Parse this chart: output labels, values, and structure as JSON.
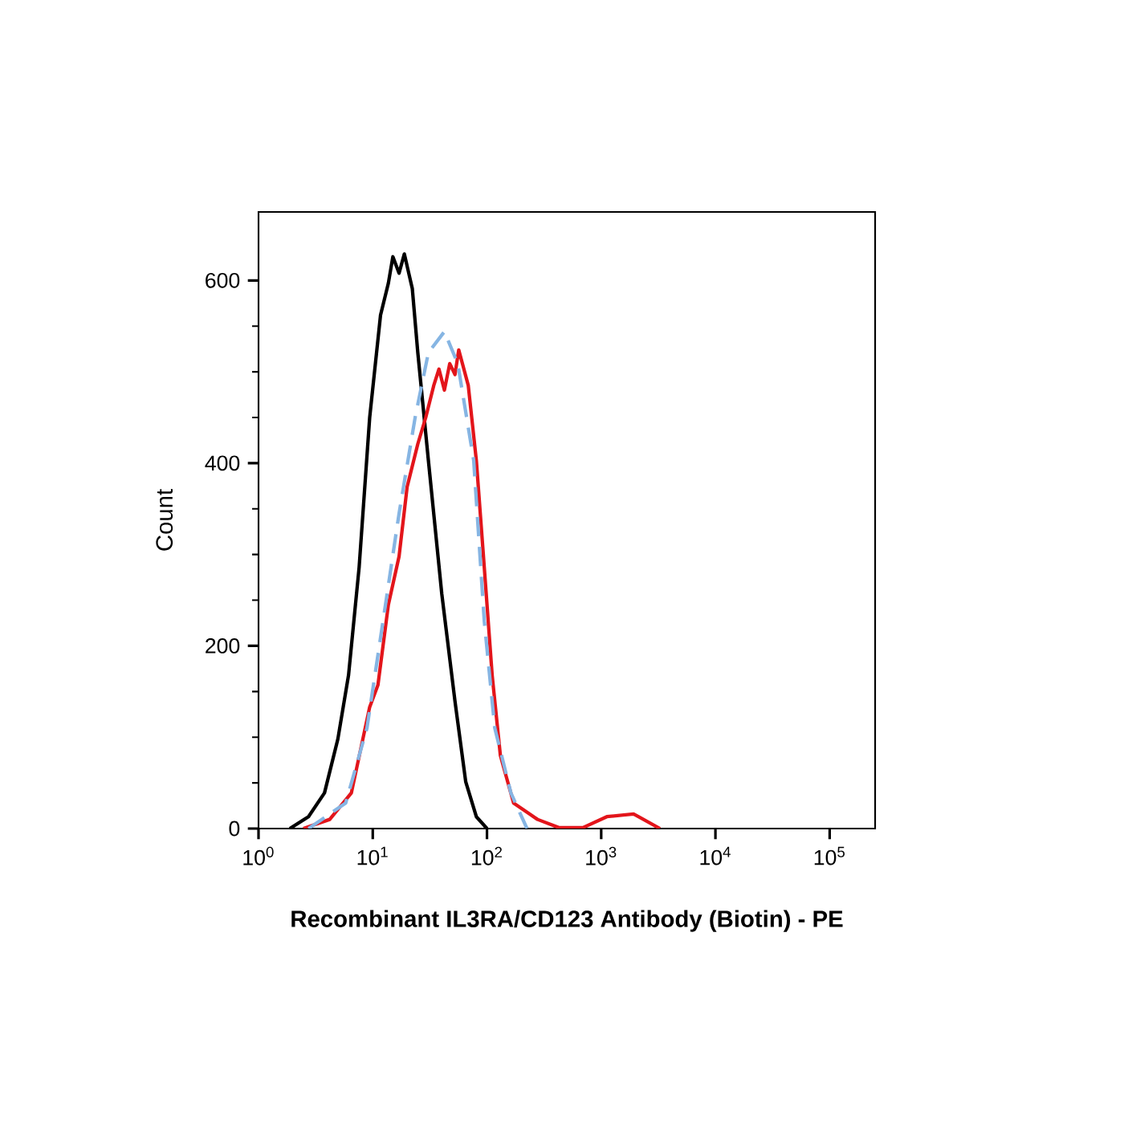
{
  "chart_data": {
    "type": "line",
    "xlabel": "Recombinant IL3RA/CD123 Antibody (Biotin) - PE",
    "ylabel": "Count",
    "log": "x",
    "xlim": [
      1,
      250000
    ],
    "ylim": [
      0,
      675
    ],
    "xticks": [
      {
        "value": 1,
        "label": "10$^{0}$"
      },
      {
        "value": 10,
        "label": "10$^{1}$"
      },
      {
        "value": 100,
        "label": "10$^{2}$"
      },
      {
        "value": 1000,
        "label": "10$^{3}$"
      },
      {
        "value": 10000,
        "label": "10$^{4}$"
      },
      {
        "value": 100000,
        "label": "10$^{5}$"
      }
    ],
    "yticks": [
      0,
      200,
      400,
      600
    ],
    "series": [
      {
        "color": "#000000",
        "x": [
          1.88,
          2.74,
          3.78,
          4.95,
          6.14,
          7.6,
          9.4,
          11.7,
          13.7,
          15,
          17,
          18.9,
          22.2,
          24.8,
          30.7,
          40.2,
          52.5,
          65.2,
          80.7,
          100
        ],
        "values": [
          0,
          13,
          39,
          98,
          168,
          286,
          450,
          562,
          597,
          626,
          608,
          629,
          591,
          521,
          403,
          257,
          139,
          51,
          13,
          0
        ]
      },
      {
        "color": "#e3151b",
        "x": [
          2.47,
          4.2,
          6.5,
          9.4,
          11.1,
          13.7,
          17,
          20,
          24.8,
          29.1,
          34.2,
          38,
          42.4,
          47.2,
          52.5,
          56.6,
          68.6,
          80.7,
          94.7,
          111,
          131,
          171,
          277,
          426,
          692,
          1120,
          1920,
          3270
        ],
        "values": [
          0,
          10,
          39,
          133,
          157,
          245,
          298,
          374,
          421,
          450,
          485,
          503,
          480,
          509,
          497,
          524,
          485,
          403,
          286,
          168,
          80,
          28,
          10,
          1,
          1,
          13,
          16,
          0
        ]
      },
      {
        "color": "#86b5e3",
        "line_style": "dashed",
        "x": [
          2.74,
          5.8,
          8.9,
          12.3,
          17,
          23.5,
          30.7,
          42.4,
          55.5,
          76.5,
          94.7,
          117,
          162,
          224
        ],
        "values": [
          0,
          28,
          110,
          227,
          345,
          450,
          521,
          544,
          509,
          403,
          227,
          110,
          39,
          0
        ]
      }
    ]
  }
}
